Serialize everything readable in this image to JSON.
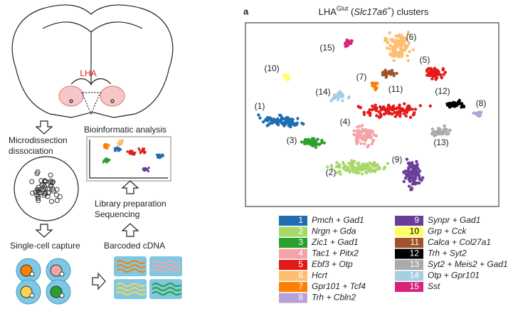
{
  "panel_label": "a",
  "title": {
    "base": "LHA",
    "superscript": "Glut",
    "prefix": " (",
    "gene": "Slc17a6",
    "gene_superscript": "+",
    "suffix": ") clusters"
  },
  "schematic": {
    "region": "LHA",
    "step1": [
      "Microdissection",
      "dissociation"
    ],
    "step2": "Single-cell capture",
    "step3": "Barcoded cDNA",
    "step4": [
      "Library preparation",
      "Sequencing"
    ],
    "step5": "Bioinformatic analysis"
  },
  "clusters": [
    {
      "id": "1",
      "tag": "(1)",
      "label": "Pmch + Gad1",
      "color": "#1f6fb0"
    },
    {
      "id": "2",
      "tag": "(2)",
      "label": "Nrgn + Gda",
      "color": "#a6d96a"
    },
    {
      "id": "3",
      "tag": "(3)",
      "label": "Zic1 + Gad1",
      "color": "#2ca02c"
    },
    {
      "id": "4",
      "tag": "(4)",
      "label": "Tac1 + Pitx2",
      "color": "#f4a3a8"
    },
    {
      "id": "5",
      "tag": "(5)",
      "label": "Ebf3 + Otp",
      "color": "#e31a1c"
    },
    {
      "id": "6",
      "tag": "(6)",
      "label": "Hcrt",
      "color": "#fdbf6f"
    },
    {
      "id": "7",
      "tag": "(7)",
      "label": "Gpr101 + Tcf4",
      "color": "#ff7f00"
    },
    {
      "id": "8",
      "tag": "(8)",
      "label": "Trh + Cbln2",
      "color": "#b8a0d8"
    },
    {
      "id": "9",
      "tag": "(9)",
      "label": "Synpr + Gad1",
      "color": "#6a3d9a"
    },
    {
      "id": "10",
      "tag": "(10)",
      "label": "Grp + Cck",
      "color": "#ffff66"
    },
    {
      "id": "11",
      "tag": "(11)",
      "label": "Calca + Col27a1",
      "color": "#a0522d"
    },
    {
      "id": "12",
      "tag": "(12)",
      "label": "Trh + Syt2",
      "color": "#000000"
    },
    {
      "id": "13",
      "tag": "(13)",
      "label": "Syt2 + Meis2 + Gad1",
      "color": "#aaaaaa"
    },
    {
      "id": "14",
      "tag": "(14)",
      "label": "Otp + Gpr101",
      "color": "#a6cee3"
    },
    {
      "id": "15",
      "tag": "(15)",
      "label": "Sst",
      "color": "#d6247a"
    }
  ]
}
